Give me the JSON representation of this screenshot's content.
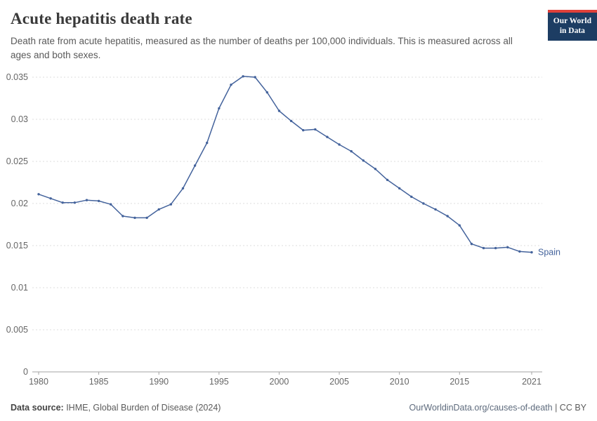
{
  "logo": {
    "line1": "Our World",
    "line2": "in Data"
  },
  "footer": {
    "source_label": "Data source:",
    "source_text": " IHME, Global Burden of Disease (2024)",
    "link_text": "OurWorldinData.org/causes-of-death",
    "license_text": " | CC BY"
  },
  "chart_data": {
    "type": "line",
    "title": "Acute hepatitis death rate",
    "subtitle": "Death rate from acute hepatitis, measured as the number of deaths per 100,000 individuals. This is measured across all ages and both sexes.",
    "xlabel": "",
    "ylabel": "",
    "xlim": [
      1980,
      2021
    ],
    "ylim": [
      0,
      0.035
    ],
    "grid": "horizontal-dashed",
    "legend_position": "end-of-line",
    "x_ticks": [
      {
        "value": 1980,
        "label": "1980"
      },
      {
        "value": 1985,
        "label": "1985"
      },
      {
        "value": 1990,
        "label": "1990"
      },
      {
        "value": 1995,
        "label": "1995"
      },
      {
        "value": 2000,
        "label": "2000"
      },
      {
        "value": 2005,
        "label": "2005"
      },
      {
        "value": 2010,
        "label": "2010"
      },
      {
        "value": 2015,
        "label": "2015"
      },
      {
        "value": 2021,
        "label": "2021"
      }
    ],
    "y_ticks": [
      {
        "value": 0,
        "label": "0"
      },
      {
        "value": 0.005,
        "label": "0.005"
      },
      {
        "value": 0.01,
        "label": "0.01"
      },
      {
        "value": 0.015,
        "label": "0.015"
      },
      {
        "value": 0.02,
        "label": "0.02"
      },
      {
        "value": 0.025,
        "label": "0.025"
      },
      {
        "value": 0.03,
        "label": "0.03"
      },
      {
        "value": 0.035,
        "label": "0.035"
      }
    ],
    "series": [
      {
        "name": "Spain",
        "color": "#44639c",
        "x": [
          1980,
          1981,
          1982,
          1983,
          1984,
          1985,
          1986,
          1987,
          1988,
          1989,
          1990,
          1991,
          1992,
          1993,
          1994,
          1995,
          1996,
          1997,
          1998,
          1999,
          2000,
          2001,
          2002,
          2003,
          2004,
          2005,
          2006,
          2007,
          2008,
          2009,
          2010,
          2011,
          2012,
          2013,
          2014,
          2015,
          2016,
          2017,
          2018,
          2019,
          2020,
          2021
        ],
        "values": [
          0.0211,
          0.0206,
          0.0201,
          0.0201,
          0.0204,
          0.0203,
          0.0199,
          0.0185,
          0.0183,
          0.0183,
          0.0193,
          0.0199,
          0.0218,
          0.0245,
          0.0272,
          0.0313,
          0.0341,
          0.0351,
          0.035,
          0.0332,
          0.031,
          0.0298,
          0.0287,
          0.0288,
          0.0279,
          0.027,
          0.0262,
          0.0251,
          0.0241,
          0.0228,
          0.0218,
          0.0208,
          0.02,
          0.0193,
          0.0185,
          0.0174,
          0.0152,
          0.0147,
          0.0147,
          0.0148,
          0.0143,
          0.0142
        ]
      }
    ]
  }
}
